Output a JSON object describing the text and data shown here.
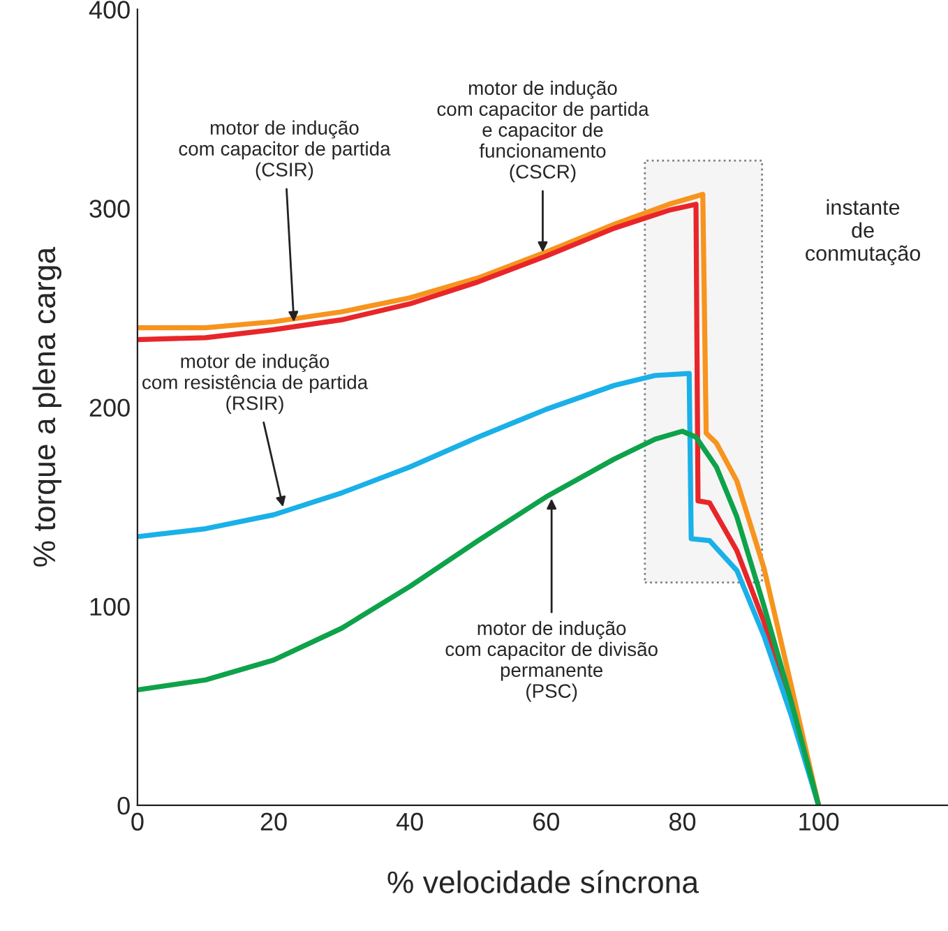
{
  "chart_data": {
    "type": "line",
    "xlabel": "% velocidade síncrona",
    "ylabel": "% torque a plena carga",
    "xlim": [
      0,
      119
    ],
    "ylim": [
      0,
      400
    ],
    "xticks": [
      0,
      20,
      40,
      60,
      80,
      100
    ],
    "yticks": [
      0,
      100,
      200,
      300,
      400
    ],
    "grid": false,
    "legend": false,
    "marker": "none",
    "line_style": "solid",
    "series": [
      {
        "color": "#f7941d",
        "x": [
          0,
          10,
          20,
          30,
          40,
          50,
          60,
          70,
          78,
          83,
          83.5,
          85,
          88,
          92,
          96,
          100
        ],
        "values": [
          240,
          240,
          243,
          248,
          255,
          265,
          278,
          292,
          302,
          307,
          187,
          182,
          163,
          119,
          60,
          0
        ]
      },
      {
        "color": "#e8262a",
        "x": [
          0,
          10,
          20,
          30,
          40,
          50,
          60,
          70,
          78,
          82,
          82.3,
          84,
          88,
          92,
          96,
          100
        ],
        "values": [
          234,
          235,
          239,
          244,
          252,
          263,
          276,
          290,
          299,
          302,
          153,
          152,
          128,
          92,
          48,
          0
        ]
      },
      {
        "color": "#1ab0e8",
        "x": [
          0,
          10,
          20,
          30,
          40,
          50,
          60,
          70,
          76,
          81,
          81.3,
          84,
          88,
          92,
          96,
          100
        ],
        "values": [
          135,
          139,
          146,
          157,
          170,
          185,
          199,
          211,
          216,
          217,
          134,
          133,
          118,
          85,
          45,
          0
        ]
      },
      {
        "color": "#0ea24a",
        "x": [
          0,
          10,
          20,
          30,
          40,
          50,
          60,
          70,
          76,
          80,
          82,
          85,
          88,
          92,
          96,
          100
        ],
        "values": [
          58,
          63,
          73,
          89,
          110,
          133,
          155,
          174,
          184,
          188,
          185,
          170,
          145,
          100,
          52,
          0
        ]
      }
    ],
    "bands": [
      {
        "axis": "x",
        "from": 74.5,
        "to": 91.7,
        "label": "instante\nde\nconmutação",
        "color": "#808080"
      }
    ],
    "annotations": [
      {
        "text": "motor de indução\ncom capacitor de partida\n(CSIR)",
        "x": 23,
        "y": 241
      },
      {
        "text": "motor de indução\ncom capacitor de partida\ne capacitor de\nfuncionamento\n(CSCR)",
        "x": 59.5,
        "y": 276
      },
      {
        "text": "motor de indução\ncom resistência de partida\n(RSIR)",
        "x": 21.5,
        "y": 148
      },
      {
        "text": "motor de indução\ncom capacitor de divisão\npermanente\n(PSC)",
        "x": 60.8,
        "y": 156
      }
    ]
  }
}
